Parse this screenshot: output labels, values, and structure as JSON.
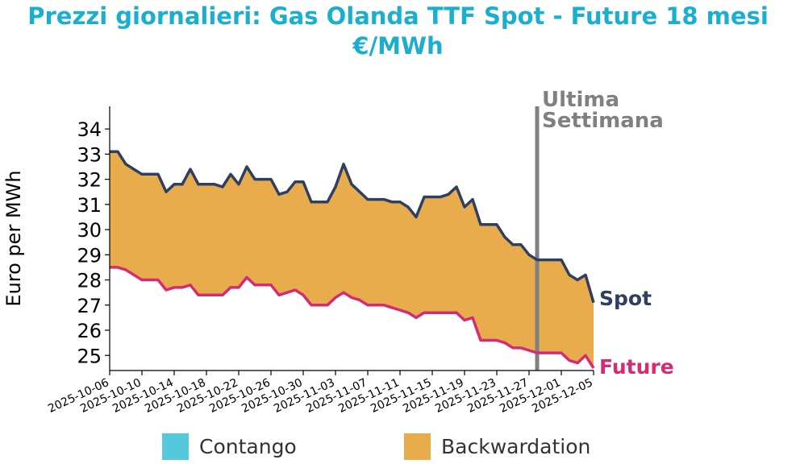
{
  "title_line1": "Prezzi giornalieri: Gas Olanda TTF Spot - Future 18 mesi",
  "title_line2": "€/MWh",
  "colors": {
    "title": "#1aafcf",
    "spot": "#2e3f62",
    "future": "#d42b77",
    "backwardation": "#e8ac4c",
    "contango": "#55c8dc",
    "marker": "#808080"
  },
  "chart_data": {
    "type": "area",
    "ylabel": "Euro per MWh",
    "ylim": [
      24.4,
      34.9
    ],
    "yticks": [
      25,
      26,
      27,
      28,
      29,
      30,
      31,
      32,
      33,
      34
    ],
    "xrange": [
      "2025-10-06",
      "2025-12-05"
    ],
    "xticks": [
      "2025-10-06",
      "2025-10-10",
      "2025-10-14",
      "2025-10-18",
      "2025-10-22",
      "2025-10-26",
      "2025-10-30",
      "2025-11-03",
      "2025-11-07",
      "2025-11-11",
      "2025-11-15",
      "2025-11-19",
      "2025-11-23",
      "2025-11-27",
      "2025-12-01",
      "2025-12-05"
    ],
    "marker": {
      "date": "2025-11-28",
      "label_line1": "Ultima",
      "label_line2": "Settimana"
    },
    "series": [
      {
        "name": "Spot",
        "dates": [
          "2025-10-06",
          "2025-10-07",
          "2025-10-08",
          "2025-10-09",
          "2025-10-10",
          "2025-10-11",
          "2025-10-12",
          "2025-10-13",
          "2025-10-14",
          "2025-10-15",
          "2025-10-16",
          "2025-10-17",
          "2025-10-18",
          "2025-10-19",
          "2025-10-20",
          "2025-10-21",
          "2025-10-22",
          "2025-10-23",
          "2025-10-24",
          "2025-10-25",
          "2025-10-26",
          "2025-10-27",
          "2025-10-28",
          "2025-10-29",
          "2025-10-30",
          "2025-10-31",
          "2025-11-01",
          "2025-11-02",
          "2025-11-03",
          "2025-11-04",
          "2025-11-05",
          "2025-11-06",
          "2025-11-07",
          "2025-11-08",
          "2025-11-09",
          "2025-11-10",
          "2025-11-11",
          "2025-11-12",
          "2025-11-13",
          "2025-11-14",
          "2025-11-15",
          "2025-11-16",
          "2025-11-17",
          "2025-11-18",
          "2025-11-19",
          "2025-11-20",
          "2025-11-21",
          "2025-11-22",
          "2025-11-23",
          "2025-11-24",
          "2025-11-25",
          "2025-11-26",
          "2025-11-27",
          "2025-11-28",
          "2025-11-29",
          "2025-11-30",
          "2025-12-01",
          "2025-12-02",
          "2025-12-03",
          "2025-12-04",
          "2025-12-05"
        ],
        "values": [
          33.1,
          33.1,
          32.6,
          32.4,
          32.2,
          32.2,
          32.2,
          31.5,
          31.8,
          31.8,
          32.4,
          31.8,
          31.8,
          31.8,
          31.7,
          32.2,
          31.8,
          32.5,
          32.0,
          32.0,
          32.0,
          31.4,
          31.5,
          31.9,
          31.9,
          31.1,
          31.1,
          31.1,
          31.7,
          32.6,
          31.8,
          31.5,
          31.2,
          31.2,
          31.2,
          31.1,
          31.1,
          30.9,
          30.5,
          31.3,
          31.3,
          31.3,
          31.4,
          31.7,
          30.9,
          31.2,
          30.2,
          30.2,
          30.2,
          29.7,
          29.4,
          29.4,
          29.0,
          28.8,
          28.8,
          28.8,
          28.8,
          28.2,
          28.0,
          28.2,
          27.1
        ]
      },
      {
        "name": "Future",
        "dates": [
          "2025-10-06",
          "2025-10-07",
          "2025-10-08",
          "2025-10-09",
          "2025-10-10",
          "2025-10-11",
          "2025-10-12",
          "2025-10-13",
          "2025-10-14",
          "2025-10-15",
          "2025-10-16",
          "2025-10-17",
          "2025-10-18",
          "2025-10-19",
          "2025-10-20",
          "2025-10-21",
          "2025-10-22",
          "2025-10-23",
          "2025-10-24",
          "2025-10-25",
          "2025-10-26",
          "2025-10-27",
          "2025-10-28",
          "2025-10-29",
          "2025-10-30",
          "2025-10-31",
          "2025-11-01",
          "2025-11-02",
          "2025-11-03",
          "2025-11-04",
          "2025-11-05",
          "2025-11-06",
          "2025-11-07",
          "2025-11-08",
          "2025-11-09",
          "2025-11-10",
          "2025-11-11",
          "2025-11-12",
          "2025-11-13",
          "2025-11-14",
          "2025-11-15",
          "2025-11-16",
          "2025-11-17",
          "2025-11-18",
          "2025-11-19",
          "2025-11-20",
          "2025-11-21",
          "2025-11-22",
          "2025-11-23",
          "2025-11-24",
          "2025-11-25",
          "2025-11-26",
          "2025-11-27",
          "2025-11-28",
          "2025-11-29",
          "2025-11-30",
          "2025-12-01",
          "2025-12-02",
          "2025-12-03",
          "2025-12-04",
          "2025-12-05"
        ],
        "values": [
          28.5,
          28.5,
          28.4,
          28.2,
          28.0,
          28.0,
          28.0,
          27.6,
          27.7,
          27.7,
          27.8,
          27.4,
          27.4,
          27.4,
          27.4,
          27.7,
          27.7,
          28.1,
          27.8,
          27.8,
          27.8,
          27.4,
          27.5,
          27.6,
          27.4,
          27.0,
          27.0,
          27.0,
          27.3,
          27.5,
          27.3,
          27.2,
          27.0,
          27.0,
          27.0,
          26.9,
          26.8,
          26.7,
          26.5,
          26.7,
          26.7,
          26.7,
          26.7,
          26.7,
          26.4,
          26.5,
          25.6,
          25.6,
          25.6,
          25.5,
          25.3,
          25.3,
          25.2,
          25.1,
          25.1,
          25.1,
          25.1,
          24.8,
          24.7,
          25.0,
          24.5
        ]
      }
    ]
  },
  "legend": [
    {
      "label": "Contango",
      "color": "#55c8dc"
    },
    {
      "label": "Backwardation",
      "color": "#e8ac4c"
    }
  ]
}
